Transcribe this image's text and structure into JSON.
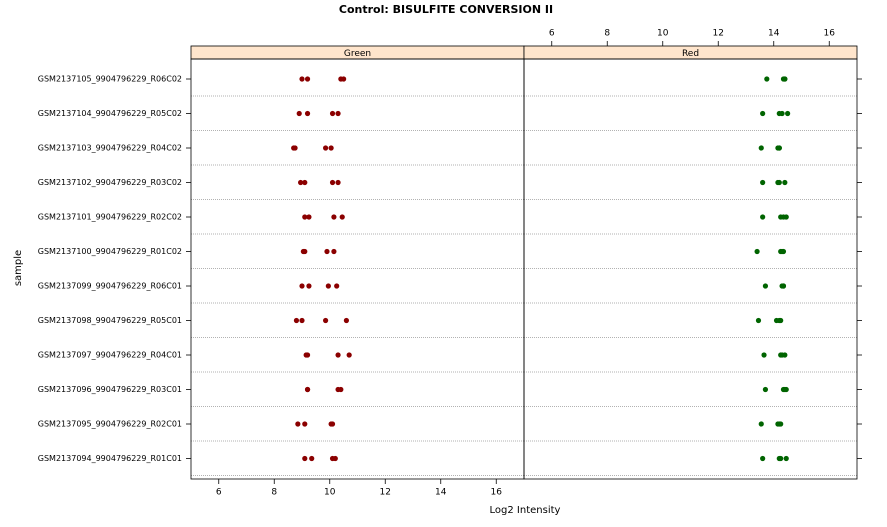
{
  "chart_data": {
    "type": "dotplot",
    "title": "Control: BISULFITE CONVERSION II",
    "x_label": "Log2 Intensity",
    "y_label": "sample",
    "categories": [
      "GSM2137105_9904796229_R06C02",
      "GSM2137104_9904796229_R05C02",
      "GSM2137103_9904796229_R04C02",
      "GSM2137102_9904796229_R03C02",
      "GSM2137101_9904796229_R02C02",
      "GSM2137100_9904796229_R01C02",
      "GSM2137099_9904796229_R06C01",
      "GSM2137098_9904796229_R05C01",
      "GSM2137097_9904796229_R04C01",
      "GSM2137096_9904796229_R03C01",
      "GSM2137095_9904796229_R02C01",
      "GSM2137094_9904796229_R01C01"
    ],
    "xlim": [
      5,
      17
    ],
    "xticks": [
      6,
      8,
      10,
      12,
      14,
      16
    ],
    "panels": [
      {
        "name": "Green",
        "color": "#8b0000",
        "values": [
          [
            9.0,
            9.2,
            10.4,
            10.5
          ],
          [
            8.9,
            9.2,
            10.1,
            10.3
          ],
          [
            8.7,
            8.75,
            9.85,
            10.05
          ],
          [
            8.95,
            9.1,
            10.1,
            10.3
          ],
          [
            9.1,
            9.25,
            10.15,
            10.45
          ],
          [
            9.05,
            9.1,
            9.9,
            10.15
          ],
          [
            9.0,
            9.25,
            9.95,
            10.25
          ],
          [
            8.8,
            9.0,
            9.85,
            10.6
          ],
          [
            9.15,
            9.2,
            10.3,
            10.7
          ],
          [
            9.2,
            9.2,
            10.3,
            10.4
          ],
          [
            8.85,
            9.1,
            10.05,
            10.1
          ],
          [
            9.1,
            9.35,
            10.1,
            10.2
          ]
        ]
      },
      {
        "name": "Red",
        "color": "#006400",
        "values": [
          [
            13.75,
            14.35,
            14.4,
            14.4
          ],
          [
            13.6,
            14.2,
            14.3,
            14.5
          ],
          [
            13.55,
            14.15,
            14.2,
            14.2
          ],
          [
            13.6,
            14.15,
            14.2,
            14.4
          ],
          [
            13.6,
            14.25,
            14.35,
            14.45
          ],
          [
            13.4,
            14.25,
            14.3,
            14.35
          ],
          [
            13.7,
            14.3,
            14.35,
            14.35
          ],
          [
            13.45,
            14.1,
            14.2,
            14.25
          ],
          [
            13.65,
            14.25,
            14.3,
            14.4
          ],
          [
            13.7,
            14.35,
            14.4,
            14.45
          ],
          [
            13.55,
            14.15,
            14.2,
            14.25
          ],
          [
            13.6,
            14.2,
            14.25,
            14.45
          ]
        ]
      }
    ]
  }
}
